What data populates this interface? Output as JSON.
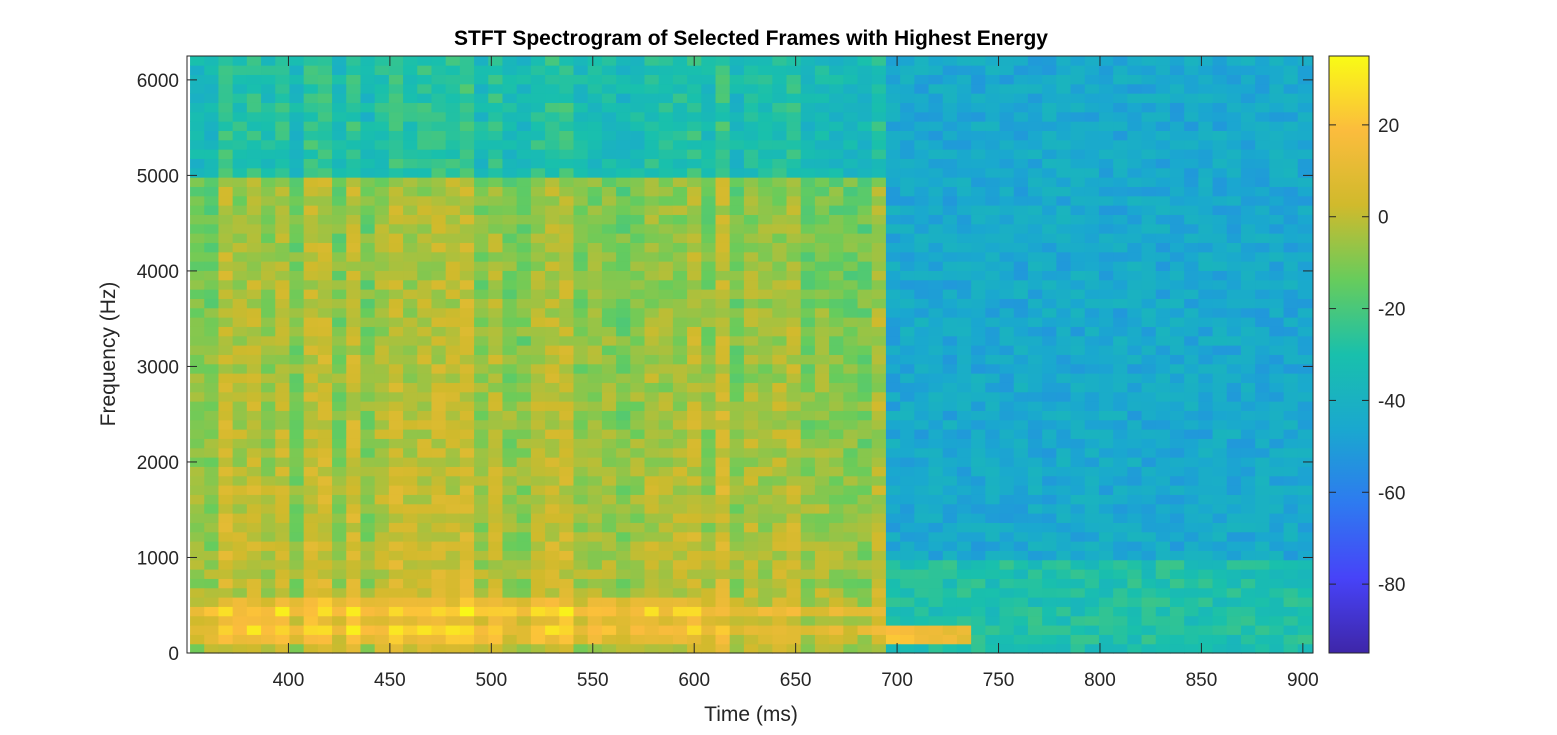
{
  "chart_data": {
    "type": "heatmap",
    "title": "STFT Spectrogram of Selected Frames with Highest Energy",
    "xlabel": "Time (ms)",
    "ylabel": "Frequency (Hz)",
    "xlim": [
      350,
      905
    ],
    "ylim": [
      0,
      6250
    ],
    "x_ticks": [
      400,
      450,
      500,
      550,
      600,
      650,
      700,
      750,
      800,
      850,
      900
    ],
    "y_ticks": [
      0,
      1000,
      2000,
      3000,
      4000,
      5000,
      6000
    ],
    "colorbar": {
      "colormap": "parula",
      "range": [
        -95,
        35
      ],
      "ticks": [
        20,
        0,
        -20,
        -40,
        -60,
        -80
      ]
    },
    "colormap_stops": [
      "#3e26a8",
      "#4743f8",
      "#2e7af0",
      "#1aa8cf",
      "#19c0ac",
      "#67cc5c",
      "#d0ba2c",
      "#fbbc3d",
      "#f9fb15"
    ],
    "time_frames_ms": [
      355,
      362,
      369,
      376,
      383,
      390,
      397,
      404,
      411,
      418,
      425,
      432,
      439,
      446,
      453,
      460,
      467,
      474,
      481,
      488,
      495,
      502,
      509,
      516,
      523,
      530,
      537,
      544,
      551,
      558,
      565,
      572,
      579,
      586,
      593,
      600,
      607,
      614,
      621,
      628,
      635,
      642,
      649,
      656,
      663,
      670,
      677,
      684,
      691,
      698,
      705,
      712,
      719,
      726,
      733,
      740,
      747,
      754,
      761,
      768,
      775,
      782,
      789,
      796,
      803,
      810,
      817,
      824,
      831,
      838,
      845,
      852,
      859,
      866,
      873,
      880,
      887,
      894,
      901
    ],
    "frequency_bin_hz": 97.7,
    "energy_summary": [
      {
        "region": "350–695 ms, 100–600 Hz (harmonic bands)",
        "level_db": 28
      },
      {
        "region": "350–695 ms, 600–5000 Hz",
        "level_db": 0
      },
      {
        "region": "350–695 ms, 5000–6250 Hz",
        "level_db": -30
      },
      {
        "region": "695–905 ms, 0–6250 Hz",
        "level_db": -45
      },
      {
        "region": "695–740 ms, 100–250 Hz",
        "level_db": 15
      }
    ]
  }
}
